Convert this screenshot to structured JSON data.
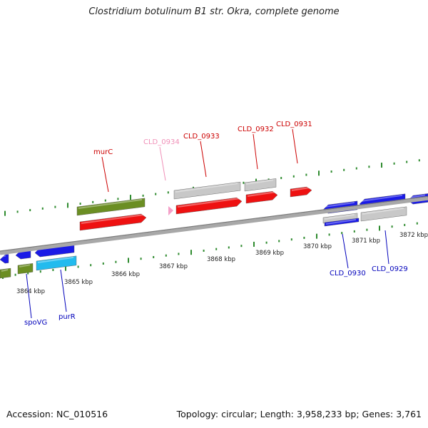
{
  "title": "Clostridium botulinum B1 str. Okra, complete genome",
  "footer": {
    "accession": "Accession: NC_010516",
    "summary": "Topology: circular; Length: 3,958,233 bp; Genes: 3,761"
  },
  "colors": {
    "backbone": "#8c8c8c",
    "tick": "#2e8b2e",
    "red": "#ee1111",
    "green": "#6b8e23",
    "gray": "#c8c8c8",
    "blue": "#1a1ae6",
    "cyan": "#22bbee",
    "pink": "#f4a0c8",
    "label_red": "#cc0000",
    "label_blue": "#0000bb",
    "label_pink": "#f090b8"
  },
  "kbp_labels": [
    "3864 kbp",
    "3865 kbp",
    "3866 kbp",
    "3867 kbp",
    "3868 kbp",
    "3869 kbp",
    "3870 kbp",
    "3871 kbp",
    "3872 kbp"
  ],
  "gene_labels": [
    {
      "text": "murC",
      "color": "label_red"
    },
    {
      "text": "CLD_0934",
      "color": "label_pink"
    },
    {
      "text": "CLD_0933",
      "color": "label_red"
    },
    {
      "text": "CLD_0932",
      "color": "label_red"
    },
    {
      "text": "CLD_0931",
      "color": "label_red"
    },
    {
      "text": "spoVG",
      "color": "label_blue"
    },
    {
      "text": "purR",
      "color": "label_blue"
    },
    {
      "text": "CLD_0930",
      "color": "label_blue"
    },
    {
      "text": "CLD_0929",
      "color": "label_blue"
    }
  ]
}
